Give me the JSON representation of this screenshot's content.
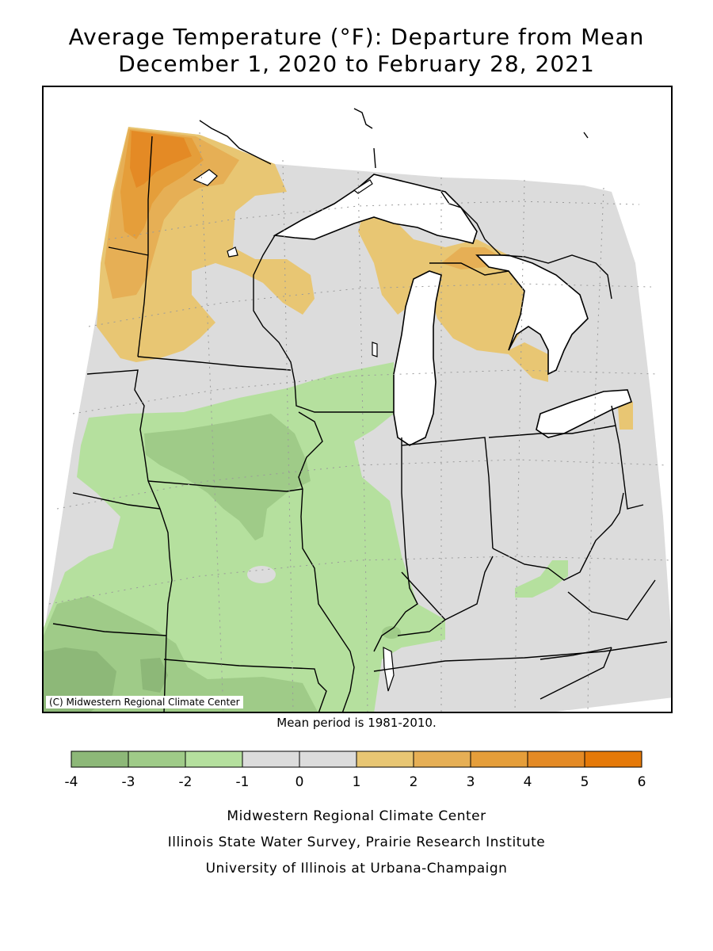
{
  "title": {
    "line1": "Average Temperature (°F): Departure from Mean",
    "line2": "December 1, 2020 to February 28, 2021"
  },
  "map": {
    "copyright": "(C) Midwestern Regional Climate Center",
    "colors": {
      "lake": "#ffffff",
      "near_normal": "#dcdcdc",
      "boundary": "#000000",
      "grid": "#9a9a9a"
    }
  },
  "mean_period": "Mean period is 1981-2010.",
  "legend": {
    "ticks": [
      "-4",
      "-3",
      "-2",
      "-1",
      "0",
      "1",
      "2",
      "3",
      "4",
      "5",
      "6"
    ],
    "bins": [
      {
        "min": -4,
        "max": -3,
        "color": "#8db878"
      },
      {
        "min": -3,
        "max": -2,
        "color": "#9fcb88"
      },
      {
        "min": -2,
        "max": -1,
        "color": "#b5e09e"
      },
      {
        "min": -1,
        "max": 0,
        "color": "#dcdcdc"
      },
      {
        "min": 0,
        "max": 1,
        "color": "#dcdcdc"
      },
      {
        "min": 1,
        "max": 2,
        "color": "#e8c673"
      },
      {
        "min": 2,
        "max": 3,
        "color": "#e6af55"
      },
      {
        "min": 3,
        "max": 4,
        "color": "#e59e3a"
      },
      {
        "min": 4,
        "max": 5,
        "color": "#e48a25"
      },
      {
        "min": 5,
        "max": 6,
        "color": "#e57908"
      }
    ]
  },
  "credits": {
    "line1": "Midwestern Regional Climate Center",
    "line2": "Illinois State Water Survey, Prairie Research Institute",
    "line3": "University of Illinois at Urbana-Champaign"
  }
}
